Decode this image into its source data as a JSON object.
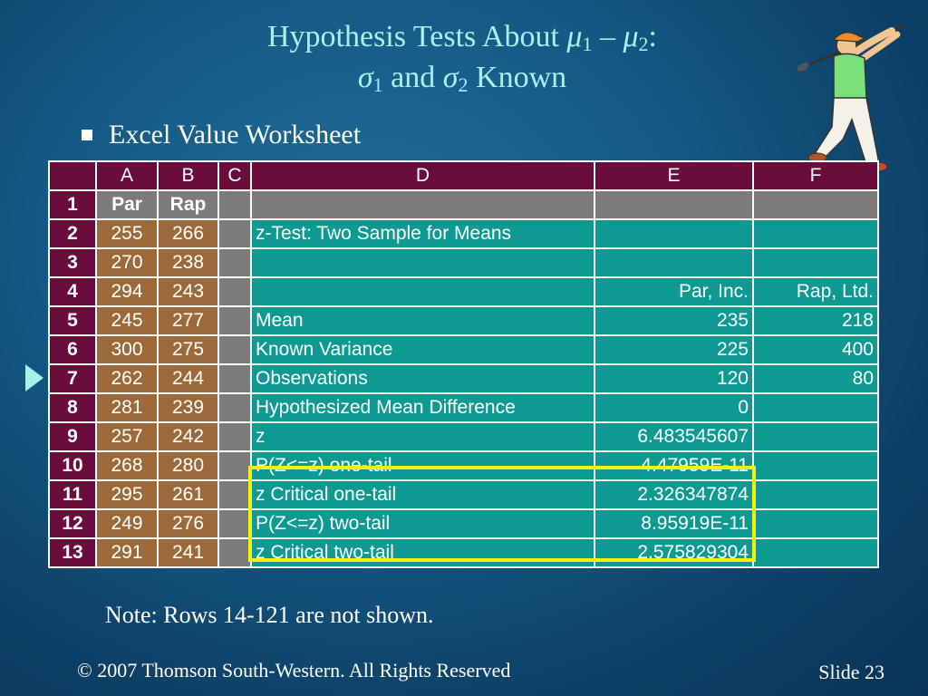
{
  "slide": {
    "title_line1_pre": "Hypothesis Tests About ",
    "mu": "μ",
    "sub1": "1",
    "minus": " – ",
    "sub2": "2",
    "colon": ":",
    "sigma": "σ",
    "and": " and ",
    "known": " Known",
    "bullet": "Excel Value Worksheet",
    "note": "Note:  Rows 14-121 are not shown.",
    "copyright": "© 2007  Thomson South-Western.  All Rights Reserved",
    "slide_number": "Slide 23"
  },
  "sheet": {
    "columns": [
      "",
      "A",
      "B",
      "C",
      "D",
      "E",
      "F"
    ],
    "rows": [
      {
        "n": "1",
        "a": "Par",
        "b": "Rap",
        "d": "",
        "e": "",
        "f": ""
      },
      {
        "n": "2",
        "a": "255",
        "b": "266",
        "d": "z-Test: Two Sample for Means",
        "e": "",
        "f": ""
      },
      {
        "n": "3",
        "a": "270",
        "b": "238",
        "d": "",
        "e": "",
        "f": ""
      },
      {
        "n": "4",
        "a": "294",
        "b": "243",
        "d": "",
        "e": "Par, Inc.",
        "f": "Rap, Ltd."
      },
      {
        "n": "5",
        "a": "245",
        "b": "277",
        "d": "Mean",
        "e": "235",
        "f": "218"
      },
      {
        "n": "6",
        "a": "300",
        "b": "275",
        "d": "Known Variance",
        "e": "225",
        "f": "400"
      },
      {
        "n": "7",
        "a": "262",
        "b": "244",
        "d": "Observations",
        "e": "120",
        "f": "80"
      },
      {
        "n": "8",
        "a": "281",
        "b": "239",
        "d": "Hypothesized Mean Difference",
        "e": "0",
        "f": ""
      },
      {
        "n": "9",
        "a": "257",
        "b": "242",
        "d": "z",
        "e": "6.483545607",
        "f": ""
      },
      {
        "n": "10",
        "a": "268",
        "b": "280",
        "d": "P(Z<=z) one-tail",
        "e": "4.47959E-11",
        "f": ""
      },
      {
        "n": "11",
        "a": "295",
        "b": "261",
        "d": "z Critical one-tail",
        "e": "2.326347874",
        "f": ""
      },
      {
        "n": "12",
        "a": "249",
        "b": "276",
        "d": "P(Z<=z) two-tail",
        "e": "8.95919E-11",
        "f": ""
      },
      {
        "n": "13",
        "a": "291",
        "b": "241",
        "d": "z Critical two-tail",
        "e": "2.575829304",
        "f": ""
      }
    ]
  },
  "colors": {
    "header": "#6a0d3c",
    "data_ab": "#9c6a3a",
    "col_c": "#7b7b7b",
    "teal": "#0e9a92",
    "highlight": "#f2f20a",
    "title": "#a8f0ee"
  },
  "icons": {
    "pointer": "triangle-pointer-icon",
    "golfer": "golfer-clipart-icon"
  }
}
